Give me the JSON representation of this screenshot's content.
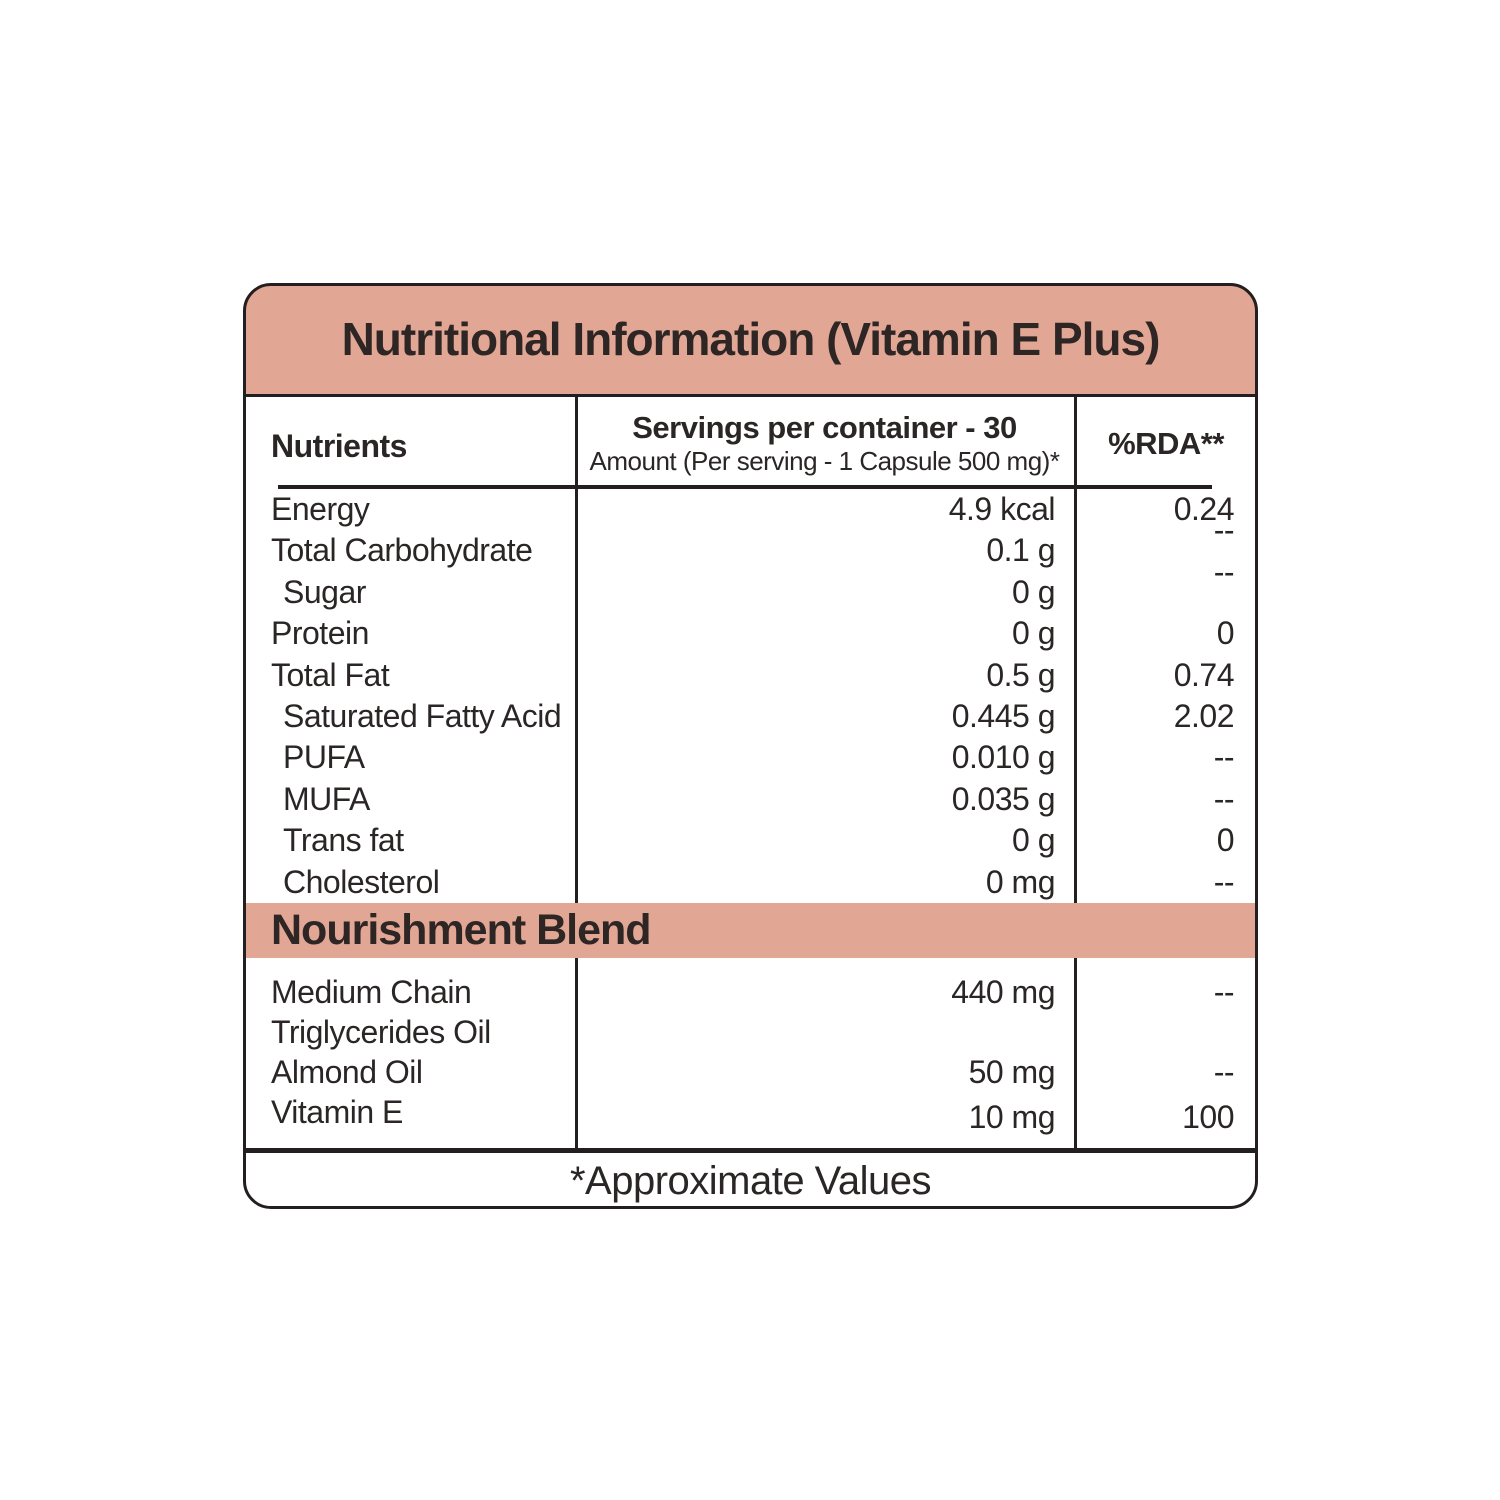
{
  "title": "Nutritional Information (Vitamin E Plus)",
  "columns": {
    "nutrients": "Nutrients",
    "servings_line1": "Servings per container - 30",
    "servings_line2": "Amount (Per serving - 1 Capsule 500 mg)*",
    "rda": "%RDA**"
  },
  "nutrient_rows": [
    {
      "name": "Energy",
      "amount": "4.9 kcal",
      "rda": "0.24"
    },
    {
      "name": "Total Carbohydrate",
      "amount": "0.1 g",
      "rda": "--"
    },
    {
      "name": "Sugar",
      "amount": "0 g",
      "rda": "--"
    },
    {
      "name": "Protein",
      "amount": "0 g",
      "rda": "0"
    },
    {
      "name": "Total Fat",
      "amount": "0.5 g",
      "rda": "0.74"
    },
    {
      "name": "Saturated Fatty Acid",
      "amount": "0.445 g",
      "rda": "2.02"
    },
    {
      "name": "PUFA",
      "amount": "0.010 g",
      "rda": "--"
    },
    {
      "name": "MUFA",
      "amount": "0.035 g",
      "rda": "--"
    },
    {
      "name": "Trans fat",
      "amount": "0 g",
      "rda": "0"
    },
    {
      "name": "Cholesterol",
      "amount": "0 mg",
      "rda": "--"
    }
  ],
  "section_title": "Nourishment Blend",
  "blend_rows": [
    {
      "name_line1": "Medium Chain",
      "name_line2": "Triglycerides Oil",
      "amount": "440 mg",
      "rda": "--"
    },
    {
      "name_line1": "Almond Oil",
      "name_line2": "",
      "amount": "50 mg",
      "rda": "--"
    },
    {
      "name_line1": "Vitamin E",
      "name_line2": "",
      "amount": "10 mg",
      "rda": "100"
    }
  ],
  "footer": "*Approximate Values",
  "colors": {
    "accent": "#e1a794",
    "line": "#231f20",
    "ink": "#2b2626"
  }
}
